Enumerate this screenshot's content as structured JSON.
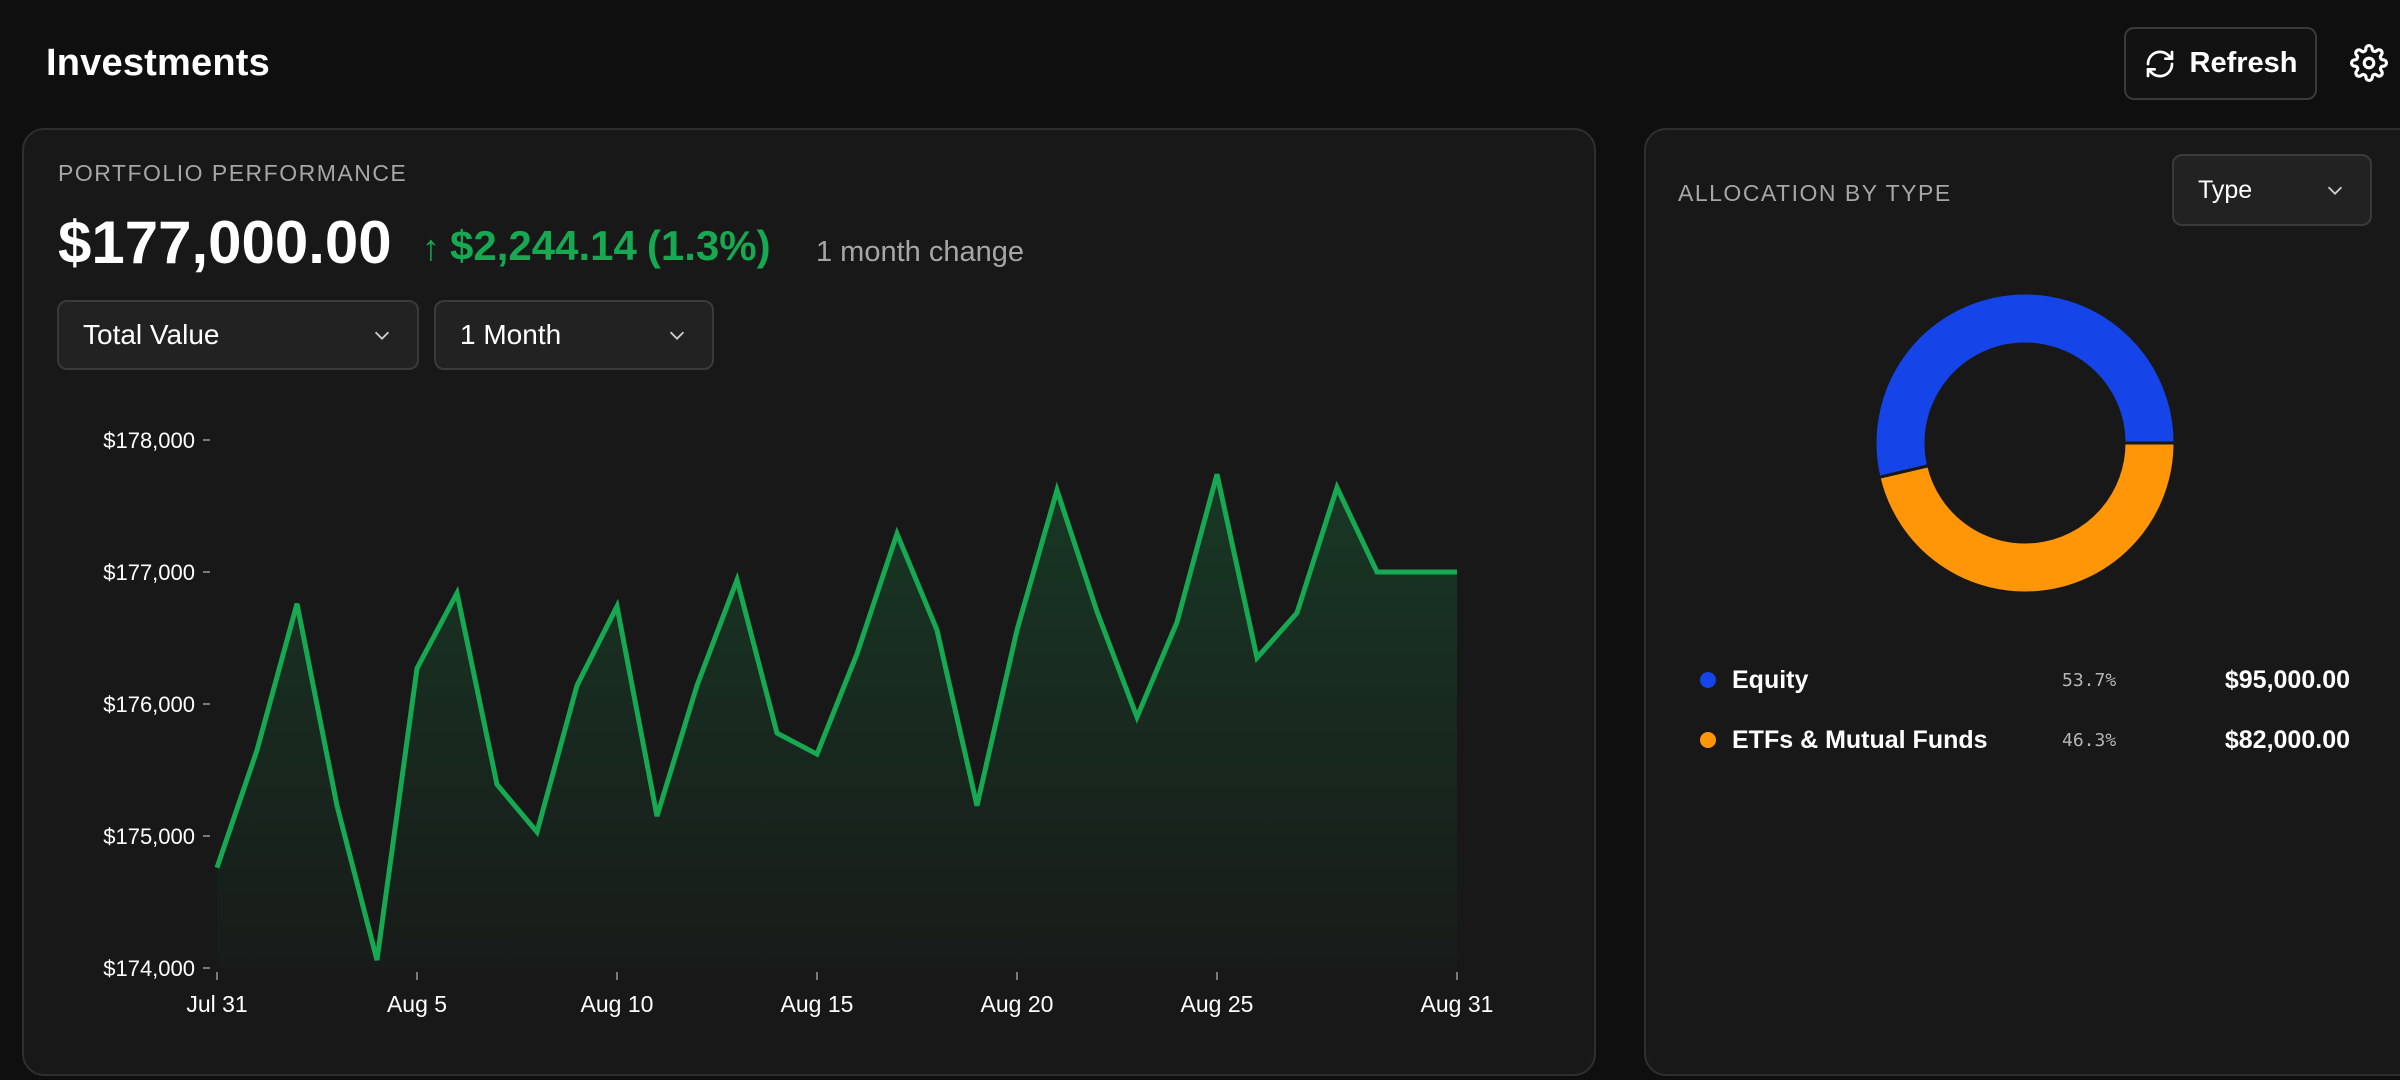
{
  "header": {
    "title": "Investments",
    "refresh_label": "Refresh",
    "refresh_icon": "refresh-icon",
    "settings_icon": "gear-icon"
  },
  "performance": {
    "label": "PORTFOLIO PERFORMANCE",
    "total_value": "$177,000.00",
    "change_amount": "$2,244.14",
    "change_percent": "(1.3%)",
    "change_arrow": "↑",
    "change_description": "1 month change",
    "metric_dropdown": "Total Value",
    "range_dropdown": "1 Month"
  },
  "allocation": {
    "label": "ALLOCATION BY TYPE",
    "group_dropdown": "Type",
    "items": [
      {
        "name": "Equity",
        "percent": "53.7%",
        "amount": "$95,000.00",
        "color": "#1544e8"
      },
      {
        "name": "ETFs & Mutual Funds",
        "percent": "46.3%",
        "amount": "$82,000.00",
        "color": "#ff9608"
      }
    ]
  },
  "colors": {
    "positive": "#17a852",
    "background": "#0f0f0f",
    "card": "#181818",
    "equity": "#1544e8",
    "etf": "#ff9608"
  },
  "chart_data": [
    {
      "type": "area",
      "title": "",
      "xlabel": "",
      "ylabel": "",
      "ylim": [
        174000,
        178000
      ],
      "yticks": [
        "$178,000",
        "$177,000",
        "$176,000",
        "$175,000",
        "$174,000"
      ],
      "ytick_values": [
        178000,
        177000,
        176000,
        175000,
        174000
      ],
      "xticks": [
        "Jul 31",
        "Aug 5",
        "Aug 10",
        "Aug 15",
        "Aug 20",
        "Aug 25",
        "Aug 31"
      ],
      "xtick_days": [
        0,
        5,
        10,
        15,
        20,
        25,
        31
      ],
      "x": [
        "Jul 31",
        "Aug 1",
        "Aug 2",
        "Aug 3",
        "Aug 4",
        "Aug 5",
        "Aug 6",
        "Aug 7",
        "Aug 8",
        "Aug 9",
        "Aug 10",
        "Aug 11",
        "Aug 12",
        "Aug 13",
        "Aug 14",
        "Aug 15",
        "Aug 16",
        "Aug 17",
        "Aug 18",
        "Aug 19",
        "Aug 20",
        "Aug 21",
        "Aug 22",
        "Aug 23",
        "Aug 24",
        "Aug 25",
        "Aug 26",
        "Aug 27",
        "Aug 28",
        "Aug 29",
        "Aug 30",
        "Aug 31"
      ],
      "series": [
        {
          "values": [
            174760,
            175650,
            176760,
            175230,
            174060,
            176270,
            176840,
            175390,
            175030,
            176140,
            176740,
            175150,
            176140,
            176940,
            175780,
            175620,
            176380,
            177290,
            176560,
            175230,
            176560,
            177620,
            176700,
            175900,
            176620,
            177740,
            176350,
            176690,
            177640,
            177000,
            177000,
            177000
          ]
        }
      ],
      "grid": false,
      "legend": "none"
    },
    {
      "type": "pie",
      "title": "",
      "labels": [
        "Equity",
        "ETFs & Mutual Funds"
      ],
      "values": [
        95000,
        82000
      ],
      "percent": [
        53.7,
        46.3
      ],
      "colors": [
        "#1544e8",
        "#ff9608"
      ],
      "donut": true,
      "legend": "bottom"
    }
  ]
}
